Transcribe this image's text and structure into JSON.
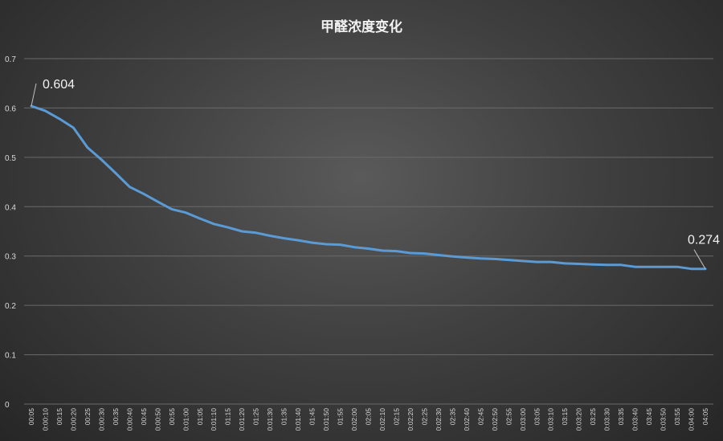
{
  "chart_data": {
    "type": "line",
    "title": "甲醛浓度变化",
    "xlabel": "",
    "ylabel": "",
    "ylim": [
      0,
      0.7
    ],
    "yticks": [
      "0",
      "0.1",
      "0.2",
      "0.3",
      "0.4",
      "0.5",
      "0.6",
      "0.7"
    ],
    "grid": true,
    "line_color": "#5b9bd5",
    "categories": [
      "00:05",
      "0:00:10",
      "00:15",
      "0:00:20",
      "00:25",
      "0:00:30",
      "00:35",
      "0:00:40",
      "00:45",
      "0:00:50",
      "00:55",
      "0:01:00",
      "01:05",
      "0:01:10",
      "01:15",
      "0:01:20",
      "01:25",
      "0:01:30",
      "01:35",
      "0:01:40",
      "01:45",
      "0:01:50",
      "01:55",
      "0:02:00",
      "02:05",
      "0:02:10",
      "02:15",
      "0:02:20",
      "02:25",
      "0:02:30",
      "02:35",
      "0:02:40",
      "02:45",
      "0:02:50",
      "02:55",
      "0:03:00",
      "03:05",
      "0:03:10",
      "03:15",
      "0:03:20",
      "03:25",
      "0:03:30",
      "03:35",
      "0:03:40",
      "03:45",
      "0:03:50",
      "03:55",
      "0:04:00",
      "04:05"
    ],
    "values": [
      0.604,
      0.594,
      0.578,
      0.56,
      0.52,
      0.495,
      0.468,
      0.44,
      0.426,
      0.41,
      0.395,
      0.388,
      0.376,
      0.365,
      0.358,
      0.35,
      0.347,
      0.341,
      0.336,
      0.332,
      0.327,
      0.324,
      0.323,
      0.318,
      0.315,
      0.311,
      0.31,
      0.306,
      0.305,
      0.302,
      0.299,
      0.297,
      0.295,
      0.294,
      0.292,
      0.29,
      0.288,
      0.288,
      0.285,
      0.284,
      0.283,
      0.282,
      0.282,
      0.278,
      0.278,
      0.278,
      0.278,
      0.274,
      0.274
    ],
    "data_labels": [
      {
        "index": 0,
        "text": "0.604"
      },
      {
        "index": 48,
        "text": "0.274"
      }
    ]
  }
}
